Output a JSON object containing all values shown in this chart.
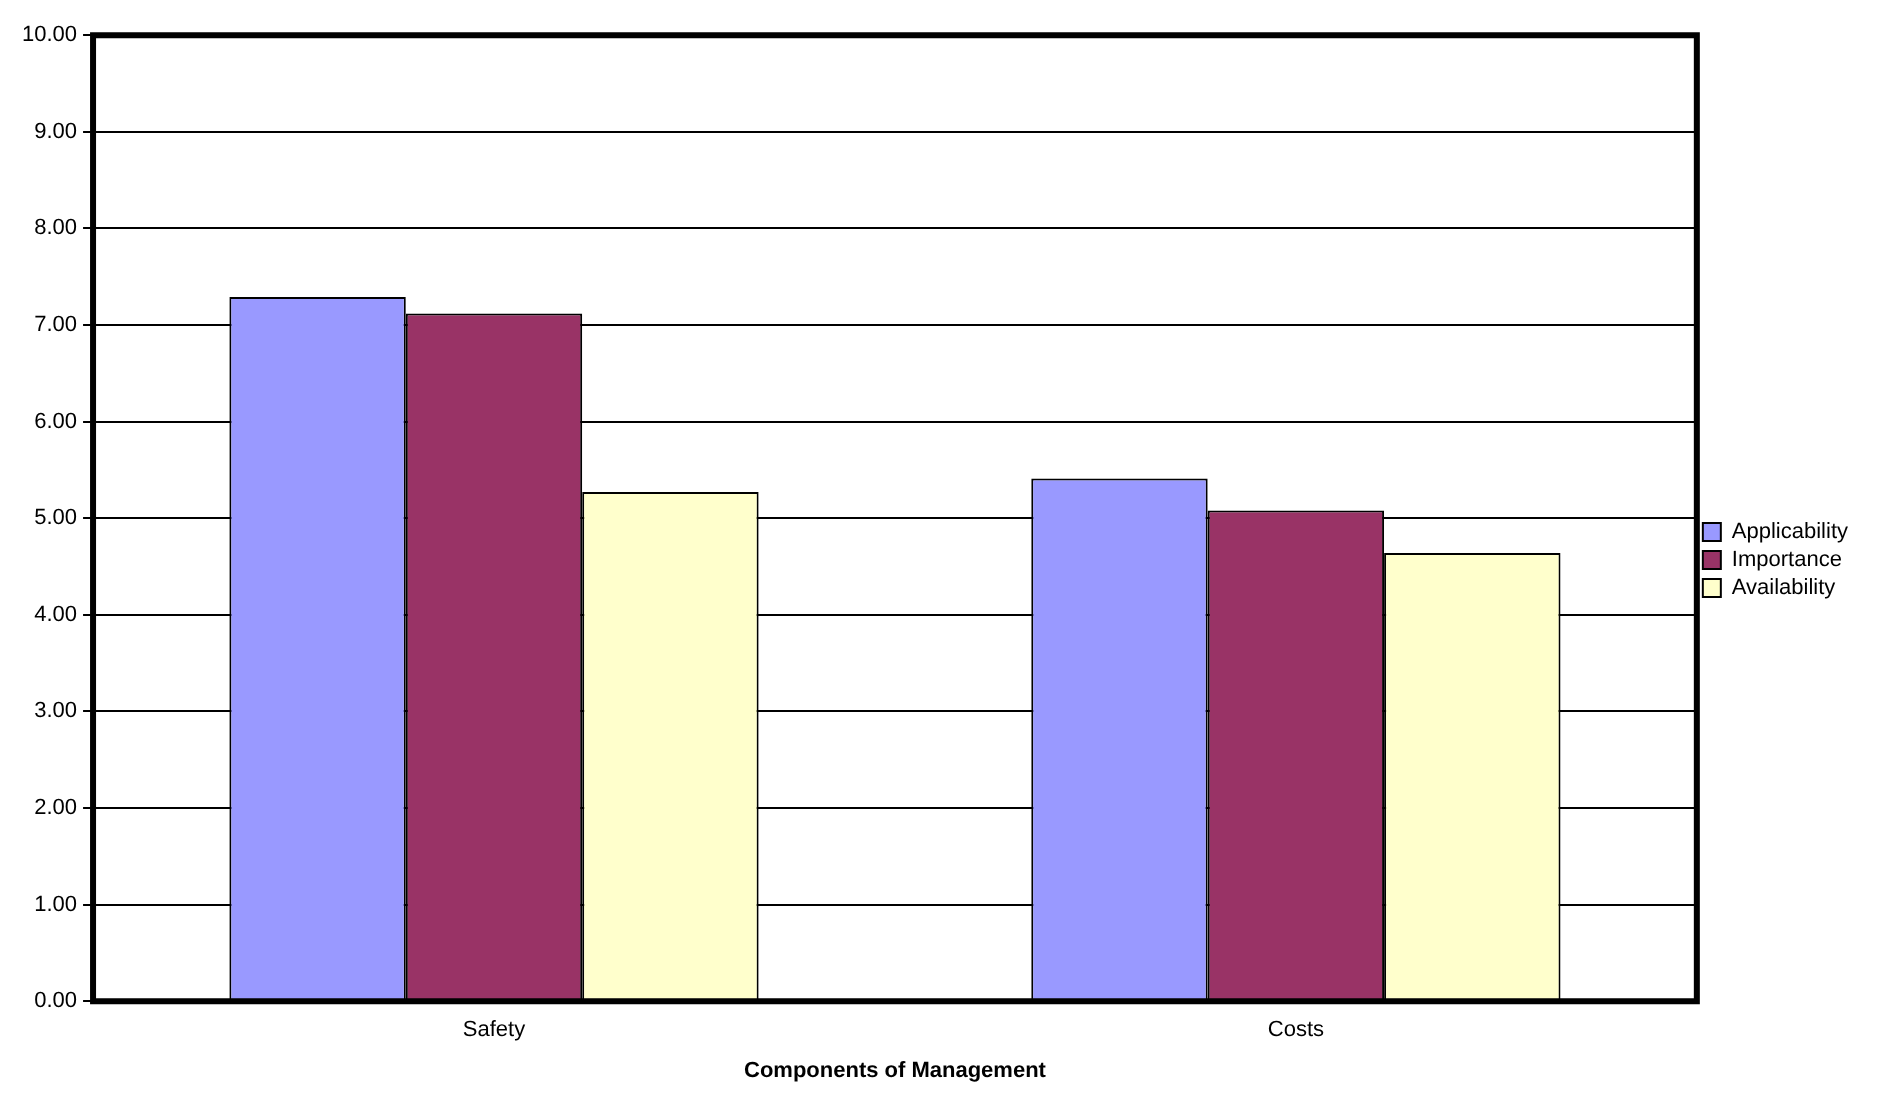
{
  "chart_data": {
    "type": "bar",
    "xlabel": "Components of Management",
    "categories": [
      "Safety",
      "Costs"
    ],
    "series": [
      {
        "name": "Applicability",
        "color": "#9999ff",
        "values": [
          7.29,
          5.41
        ]
      },
      {
        "name": "Importance",
        "color": "#993366",
        "values": [
          7.12,
          5.08
        ]
      },
      {
        "name": "Availability",
        "color": "#ffffcc",
        "values": [
          5.27,
          4.64
        ]
      }
    ],
    "ylim": [
      0,
      10
    ],
    "yticks": [
      {
        "value": 0,
        "label": "0.00"
      },
      {
        "value": 1,
        "label": "1.00"
      },
      {
        "value": 2,
        "label": "2.00"
      },
      {
        "value": 3,
        "label": "3.00"
      },
      {
        "value": 4,
        "label": "4.00"
      },
      {
        "value": 5,
        "label": "5.00"
      },
      {
        "value": 6,
        "label": "6.00"
      },
      {
        "value": 7,
        "label": "7.00"
      },
      {
        "value": 8,
        "label": "8.00"
      },
      {
        "value": 9,
        "label": "9.00"
      },
      {
        "value": 10,
        "label": "10.00"
      }
    ],
    "grid": "y",
    "legend": "right"
  }
}
